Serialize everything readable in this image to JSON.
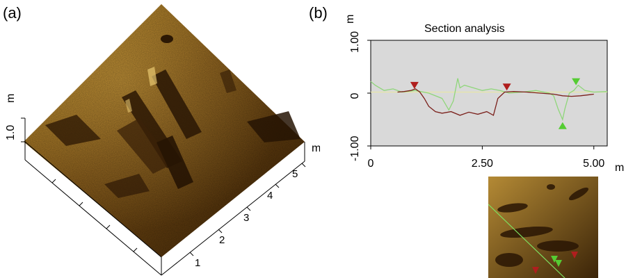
{
  "figure": {
    "panel_a_label": "(a)",
    "panel_b_label": "(b)"
  },
  "panel_a": {
    "z_axis_unit": "m",
    "z_axis_tick": "1.0",
    "x_axis_unit": "m",
    "x_axis_ticks": [
      "1",
      "2",
      "3",
      "4",
      "5"
    ],
    "colors": {
      "surface_dark": "#3a2106",
      "surface_mid": "#7a4f14",
      "surface_light": "#c8962e"
    }
  },
  "panel_b": {
    "chart_data": {
      "type": "line",
      "title": "Section analysis",
      "xlabel": "",
      "ylabel": "",
      "x_unit": "m",
      "y_unit": "m",
      "xlim": [
        0,
        5.3
      ],
      "ylim": [
        -1.0,
        1.0
      ],
      "x_ticks": [
        "0",
        "2.50",
        "5.00"
      ],
      "y_ticks": [
        "1.00",
        "0",
        "-1.00"
      ],
      "plot_background": "#d9d9d9",
      "series": [
        {
          "color": "#7a1f1a",
          "x": [
            0.6,
            0.75,
            0.9,
            1.0,
            1.1,
            1.2,
            1.3,
            1.45,
            1.6,
            1.8,
            2.0,
            2.2,
            2.4,
            2.6,
            2.75,
            2.85,
            3.0,
            3.2,
            3.5,
            3.8,
            4.1,
            4.3,
            4.5,
            4.7,
            4.9,
            5.0
          ],
          "y": [
            0.02,
            0.03,
            0.05,
            0.08,
            0.02,
            -0.1,
            -0.25,
            -0.35,
            -0.38,
            -0.35,
            -0.42,
            -0.36,
            -0.4,
            -0.35,
            -0.42,
            -0.1,
            0.02,
            0.03,
            0.02,
            0.0,
            -0.02,
            -0.05,
            -0.06,
            -0.05,
            -0.03,
            -0.02
          ]
        },
        {
          "color": "#8fd67a",
          "x": [
            0.0,
            0.1,
            0.3,
            0.5,
            0.7,
            1.0,
            1.3,
            1.6,
            1.75,
            1.85,
            1.95,
            2.0,
            2.1,
            2.3,
            2.5,
            2.7,
            2.9,
            3.1,
            3.4,
            3.7,
            4.0,
            4.1,
            4.2,
            4.3,
            4.35,
            4.45,
            4.55,
            4.65,
            4.8,
            5.0,
            5.3
          ],
          "y": [
            0.22,
            0.15,
            0.05,
            0.08,
            0.02,
            0.05,
            0.0,
            -0.1,
            -0.32,
            -0.15,
            0.28,
            0.1,
            0.15,
            0.1,
            0.05,
            0.08,
            0.05,
            0.0,
            0.02,
            0.05,
            0.0,
            -0.05,
            -0.3,
            -0.5,
            -0.3,
            0.0,
            0.05,
            0.15,
            0.05,
            0.02,
            0.03
          ]
        },
        {
          "color": "#e8e6a8",
          "x": [
            0.0,
            5.3
          ],
          "y": [
            0.02,
            0.02
          ]
        }
      ],
      "markers": [
        {
          "x": 0.98,
          "y": 0.08,
          "color": "#b01e1e",
          "direction": "down"
        },
        {
          "x": 3.05,
          "y": 0.05,
          "color": "#b01e1e",
          "direction": "down"
        },
        {
          "x": 4.6,
          "y": 0.15,
          "color": "#55cc33",
          "direction": "down"
        },
        {
          "x": 4.3,
          "y": -0.55,
          "color": "#55cc33",
          "direction": "up"
        }
      ]
    },
    "inset_colors": {
      "dark": "#3b2408",
      "light": "#b48a35",
      "line": "#7de060",
      "red": "#b01e1e",
      "green": "#55cc33"
    }
  }
}
